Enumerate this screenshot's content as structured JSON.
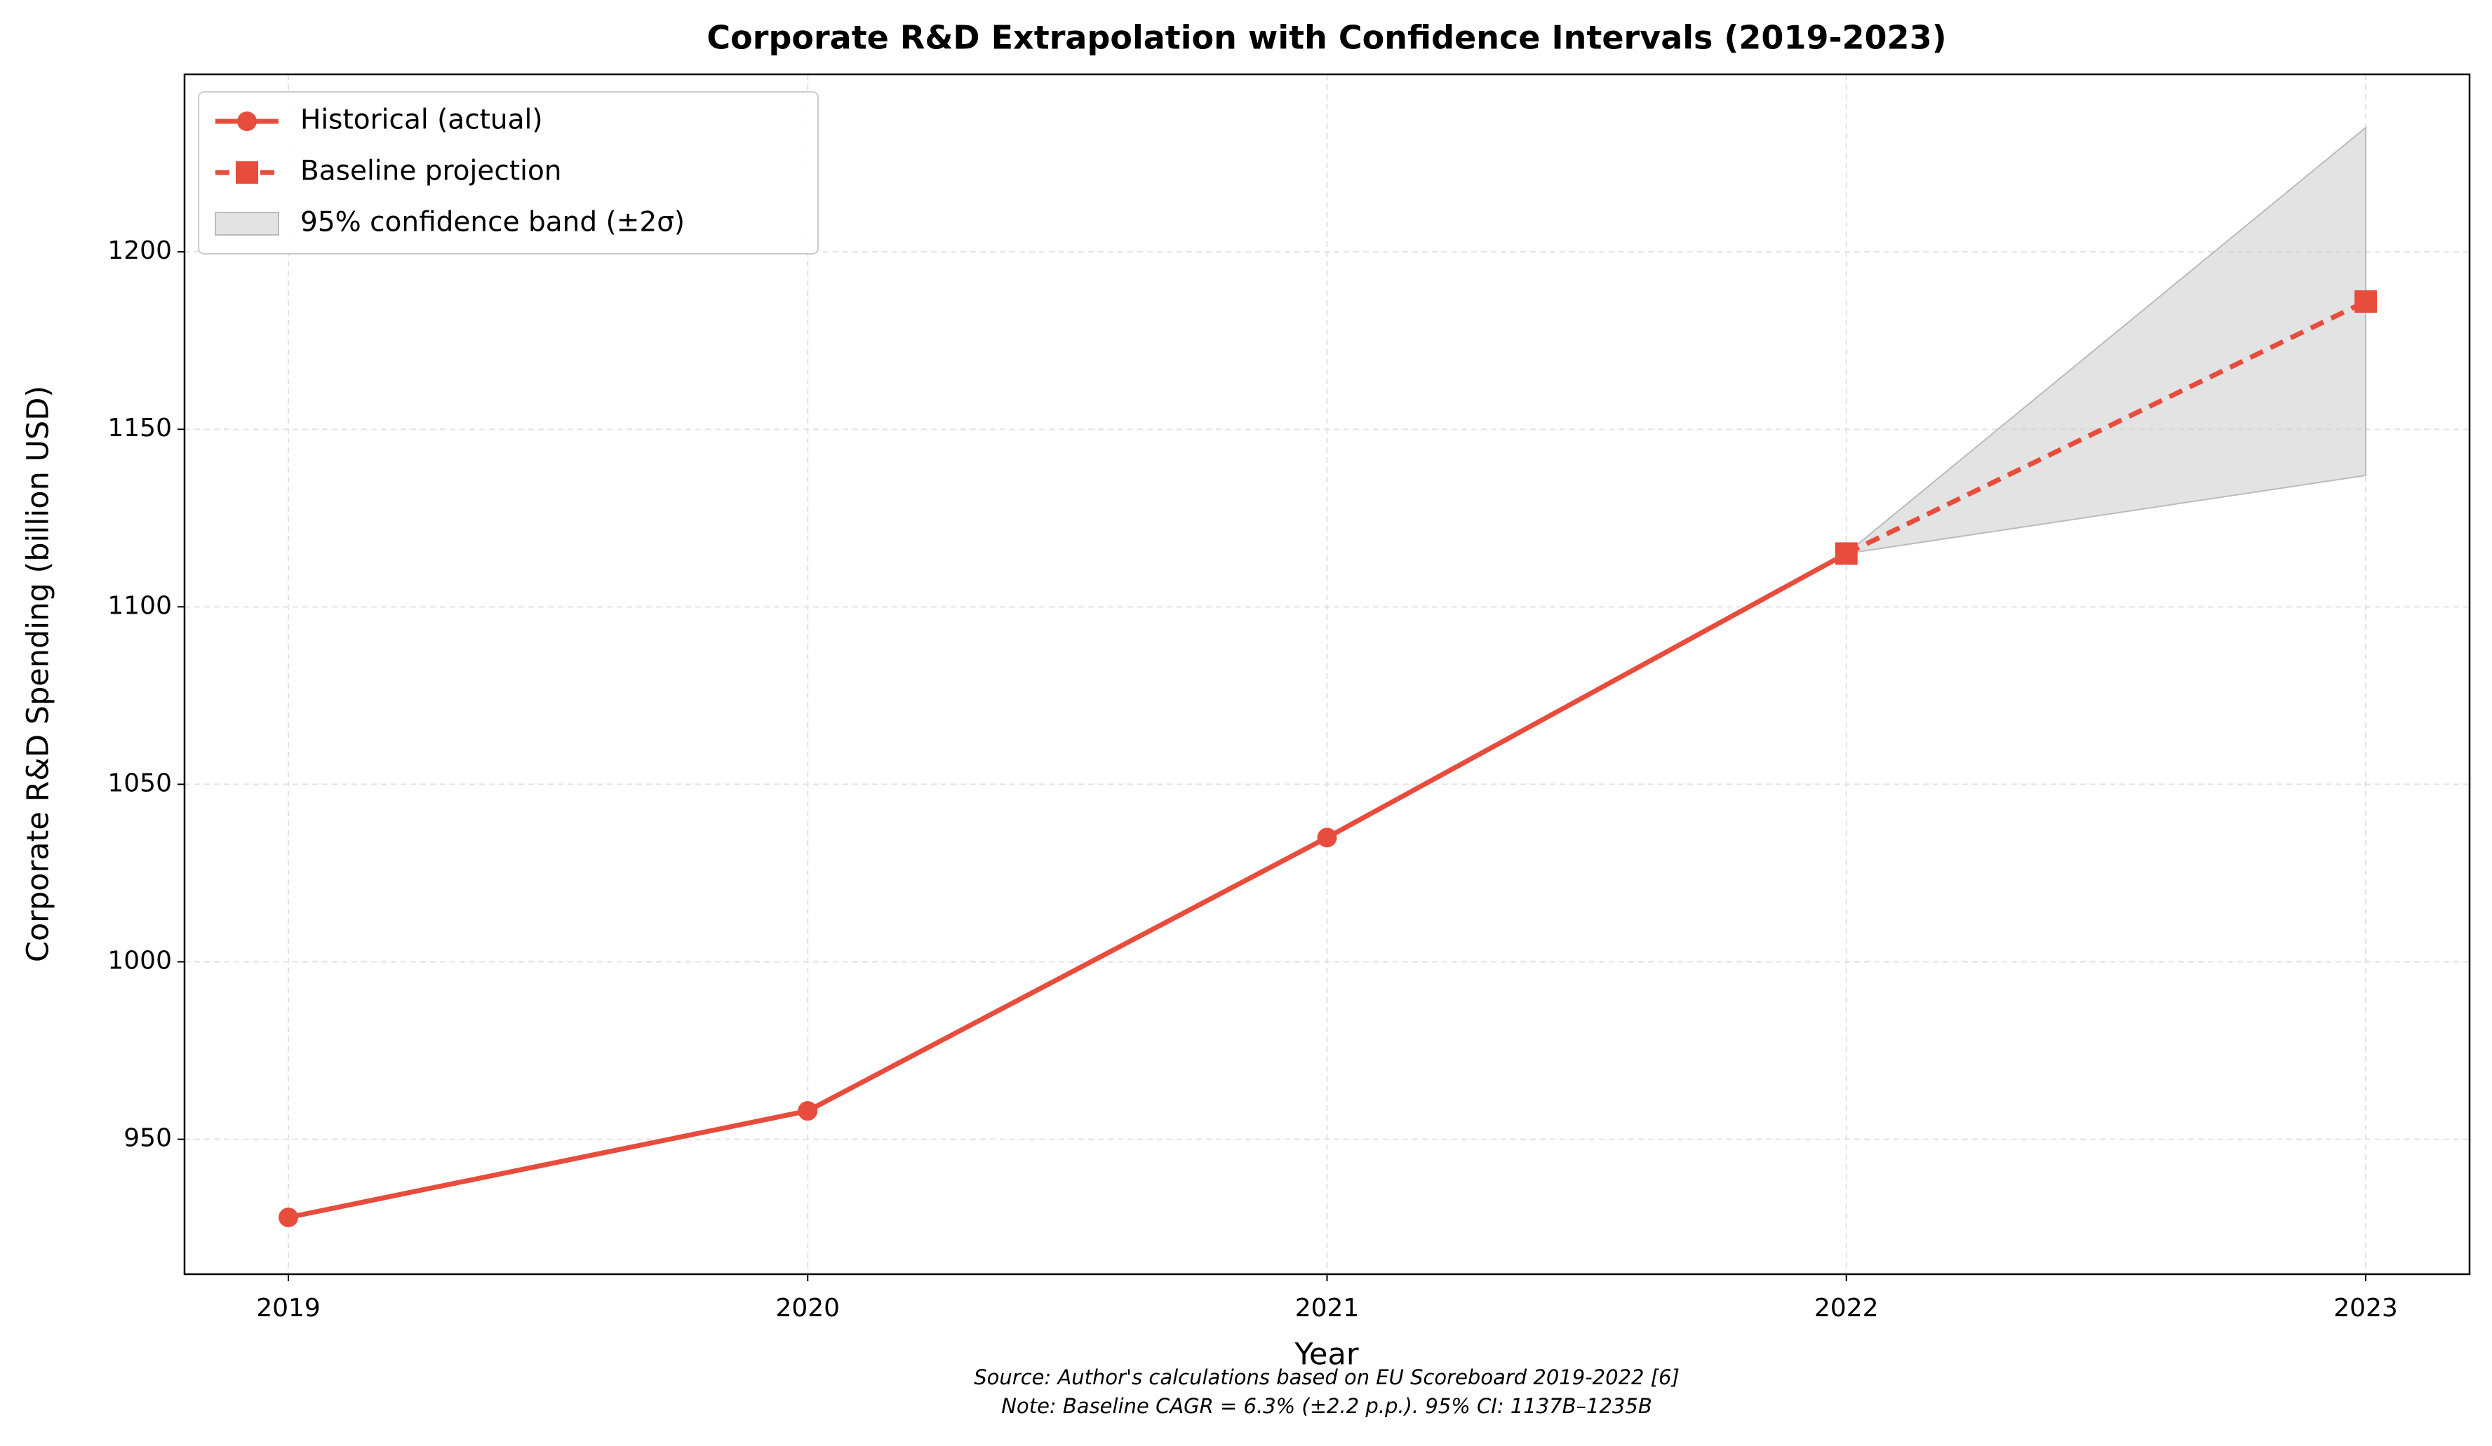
{
  "chart_data": {
    "type": "line",
    "title": "Corporate R&D Extrapolation with Confidence Intervals (2019-2023)",
    "x_label": "Year",
    "y_label": "Corporate R&D Spending (billion USD)",
    "x": [
      2019,
      2020,
      2021,
      2022,
      2023
    ],
    "series": [
      {
        "name": "Historical (actual)",
        "color": "#e74c3c",
        "style": "solid",
        "marker": "circle",
        "values": [
          928,
          958,
          1035,
          1115,
          null
        ]
      },
      {
        "name": "Baseline projection",
        "color": "#e74c3c",
        "style": "dashed",
        "marker": "square",
        "values": [
          null,
          null,
          null,
          1115,
          1186
        ]
      }
    ],
    "band": {
      "name": "95% confidence band (±2σ)",
      "color": "#cccccc",
      "lower": [
        null,
        null,
        null,
        1115,
        1137
      ],
      "upper": [
        null,
        null,
        null,
        1115,
        1235
      ]
    },
    "xlim": [
      2018.8,
      2023.2
    ],
    "ylim": [
      912,
      1250
    ],
    "xticks": [
      2019,
      2020,
      2021,
      2022,
      2023
    ],
    "yticks": [
      950,
      1000,
      1050,
      1100,
      1150,
      1200
    ],
    "grid": true,
    "legend": "upper left",
    "annotations": [
      "Source: Author's calculations based on EU Scoreboard 2019-2022 [6]",
      "Note: Baseline CAGR = 6.3% (±2.2 p.p.). 95% CI: 1137B–1235B"
    ]
  }
}
